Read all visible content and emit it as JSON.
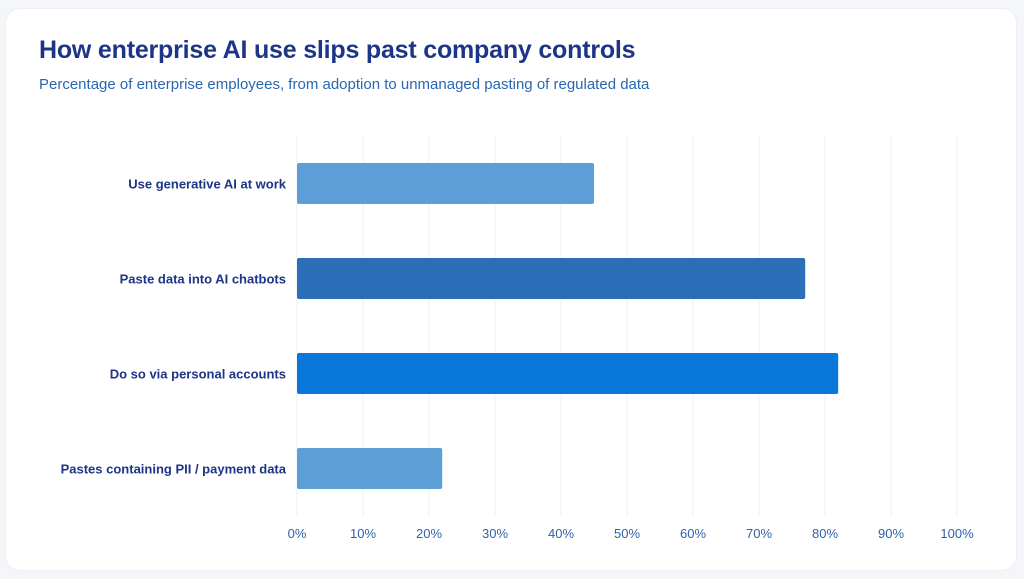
{
  "header": {
    "title": "How enterprise AI use slips past company controls",
    "subtitle": "Percentage of enterprise employees, from adoption to unmanaged pasting of regulated data"
  },
  "chart_data": {
    "type": "bar",
    "orientation": "horizontal",
    "categories": [
      "Use generative AI at work",
      "Paste data into AI chatbots",
      "Do so via personal accounts",
      "Pastes containing PII / payment data"
    ],
    "values": [
      45,
      77,
      82,
      22
    ],
    "bar_colors": [
      "#5b9fd6",
      "#2c6fb8",
      "#0a77db",
      "#5b9fd6"
    ],
    "xlim": [
      0,
      100
    ],
    "xticks": [
      "0%",
      "10%",
      "20%",
      "30%",
      "40%",
      "50%",
      "60%",
      "70%",
      "80%",
      "90%",
      "100%"
    ],
    "grid": true,
    "title": "How enterprise AI use slips past company controls",
    "subtitle": "Percentage of enterprise employees, from adoption to unmanaged pasting of regulated data",
    "xlabel": "",
    "ylabel": ""
  }
}
